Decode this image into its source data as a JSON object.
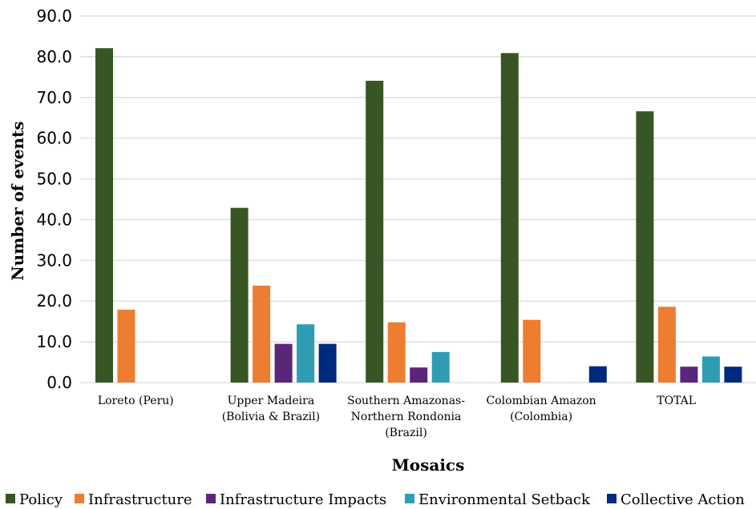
{
  "colors": {
    "Policy": "#375623",
    "Infrastructure": "#ED7D31",
    "Infrastructure Impacts": "#5B2579",
    "Environmental Setback": "#2E9DB4",
    "Collective Action": "#002A7F",
    "grid": "#d9d9d9"
  },
  "chart_data": {
    "type": "bar",
    "title": "",
    "xlabel": "Mosaics",
    "ylabel": "Number of events",
    "ylim": [
      0,
      90
    ],
    "yticks": [
      "0.0",
      "10.0",
      "20.0",
      "30.0",
      "40.0",
      "50.0",
      "60.0",
      "70.0",
      "80.0",
      "90.0"
    ],
    "grid": true,
    "legend_position": "bottom",
    "categories": [
      [
        "Loreto (Peru)"
      ],
      [
        "Upper Madeira",
        "(Bolivia & Brazil)"
      ],
      [
        "Southern Amazonas-",
        "Northern Rondonia",
        "(Brazil)"
      ],
      [
        "Colombian Amazon",
        "(Colombia)"
      ],
      [
        "TOTAL"
      ]
    ],
    "series": [
      {
        "name": "Policy",
        "values": [
          82.1,
          42.9,
          74.1,
          80.9,
          66.6
        ]
      },
      {
        "name": "Infrastructure",
        "values": [
          17.9,
          23.8,
          14.8,
          15.4,
          18.6
        ]
      },
      {
        "name": "Infrastructure Impacts",
        "values": [
          0,
          9.5,
          3.7,
          0,
          3.9
        ]
      },
      {
        "name": "Environmental Setback",
        "values": [
          0,
          14.3,
          7.5,
          0,
          6.4
        ]
      },
      {
        "name": "Collective Action",
        "values": [
          0,
          9.5,
          0,
          4.0,
          3.9
        ]
      }
    ]
  }
}
